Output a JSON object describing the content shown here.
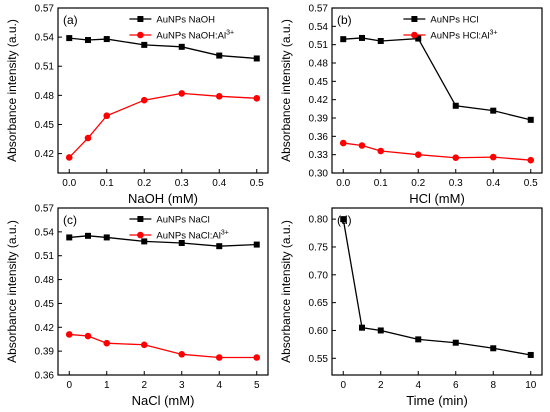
{
  "chart_data": [
    {
      "type": "line",
      "panel_label": "(a)",
      "xlabel": "NaOH (mM)",
      "ylabel": "Absorbance intensity (a.u.)",
      "xlim": [
        -0.03,
        0.53
      ],
      "ylim": [
        0.4,
        0.57
      ],
      "xticks": [
        0.0,
        0.1,
        0.2,
        0.3,
        0.4,
        0.5
      ],
      "xtick_labels": [
        "0.0",
        "0.1",
        "0.2",
        "0.3",
        "0.4",
        "0.5"
      ],
      "yticks": [
        0.42,
        0.45,
        0.48,
        0.51,
        0.54,
        0.57
      ],
      "ytick_labels": [
        "0.42",
        "0.45",
        "0.48",
        "0.51",
        "0.54",
        "0.57"
      ],
      "legend": "top-right",
      "grid": false,
      "series": [
        {
          "name": "AuNPs NaOH",
          "color": "#000000",
          "marker": "square",
          "x": [
            0.0,
            0.05,
            0.1,
            0.2,
            0.3,
            0.4,
            0.5
          ],
          "y": [
            0.539,
            0.537,
            0.538,
            0.532,
            0.53,
            0.521,
            0.518
          ]
        },
        {
          "name": "AuNPs NaOH:Al",
          "name_sup": "3+",
          "color": "#ff0000",
          "marker": "circle",
          "x": [
            0.0,
            0.05,
            0.1,
            0.2,
            0.3,
            0.4,
            0.5
          ],
          "y": [
            0.416,
            0.436,
            0.459,
            0.475,
            0.482,
            0.479,
            0.477
          ]
        }
      ]
    },
    {
      "type": "line",
      "panel_label": "(b)",
      "xlabel": "HCl (mM)",
      "ylabel": "Absorbance intensity (a.u.)",
      "xlim": [
        -0.03,
        0.53
      ],
      "ylim": [
        0.3,
        0.57
      ],
      "xticks": [
        0.0,
        0.1,
        0.2,
        0.3,
        0.4,
        0.5
      ],
      "xtick_labels": [
        "0.0",
        "0.1",
        "0.2",
        "0.3",
        "0.4",
        "0.5"
      ],
      "yticks": [
        0.3,
        0.33,
        0.36,
        0.39,
        0.42,
        0.45,
        0.48,
        0.51,
        0.54,
        0.57
      ],
      "ytick_labels": [
        "0.30",
        "0.33",
        "0.36",
        "0.39",
        "0.42",
        "0.45",
        "0.48",
        "0.51",
        "0.54",
        "0.57"
      ],
      "legend": "top-right",
      "grid": false,
      "series": [
        {
          "name": "AuNPs HCl",
          "color": "#000000",
          "marker": "square",
          "x": [
            0.0,
            0.05,
            0.1,
            0.2,
            0.3,
            0.4,
            0.5
          ],
          "y": [
            0.519,
            0.521,
            0.516,
            0.52,
            0.41,
            0.402,
            0.387
          ]
        },
        {
          "name": "AuNPs HCl:Al",
          "name_sup": "3+",
          "color": "#ff0000",
          "marker": "circle",
          "x": [
            0.0,
            0.05,
            0.1,
            0.2,
            0.3,
            0.4,
            0.5
          ],
          "y": [
            0.349,
            0.345,
            0.336,
            0.33,
            0.325,
            0.326,
            0.321
          ]
        }
      ]
    },
    {
      "type": "line",
      "panel_label": "(c)",
      "xlabel": "NaCl (mM)",
      "ylabel": "Absorbance intensity (a.u.)",
      "xlim": [
        -0.3,
        5.3
      ],
      "ylim": [
        0.36,
        0.57
      ],
      "xticks": [
        0,
        1,
        2,
        3,
        4,
        5
      ],
      "xtick_labels": [
        "0",
        "1",
        "2",
        "3",
        "4",
        "5"
      ],
      "yticks": [
        0.36,
        0.39,
        0.42,
        0.45,
        0.48,
        0.51,
        0.54,
        0.57
      ],
      "ytick_labels": [
        "0.36",
        "0.39",
        "0.42",
        "0.45",
        "0.48",
        "0.51",
        "0.54",
        "0.57"
      ],
      "legend": "top-right",
      "grid": false,
      "series": [
        {
          "name": "AuNPs NaCl",
          "color": "#000000",
          "marker": "square",
          "x": [
            0,
            0.5,
            1,
            2,
            3,
            4,
            5
          ],
          "y": [
            0.533,
            0.535,
            0.533,
            0.528,
            0.526,
            0.522,
            0.524
          ]
        },
        {
          "name": "AuNPs NaCl:Al",
          "name_sup": "3+",
          "color": "#ff0000",
          "marker": "circle",
          "x": [
            0,
            0.5,
            1,
            2,
            3,
            4,
            5
          ],
          "y": [
            0.411,
            0.409,
            0.4,
            0.398,
            0.386,
            0.382,
            0.382
          ]
        }
      ]
    },
    {
      "type": "line",
      "panel_label": "(d)",
      "xlabel": "Time (min)",
      "ylabel": "Absorbance intensity (a.u.)",
      "xlim": [
        -0.6,
        10.6
      ],
      "ylim": [
        0.52,
        0.82
      ],
      "xticks": [
        0,
        2,
        4,
        6,
        8,
        10
      ],
      "xtick_labels": [
        "0",
        "2",
        "4",
        "6",
        "8",
        "10"
      ],
      "yticks": [
        0.55,
        0.6,
        0.65,
        0.7,
        0.75,
        0.8
      ],
      "ytick_labels": [
        "0.55",
        "0.60",
        "0.65",
        "0.70",
        "0.75",
        "0.80"
      ],
      "legend": "none",
      "grid": false,
      "series": [
        {
          "color": "#000000",
          "marker": "square",
          "x": [
            0,
            1,
            2,
            4,
            6,
            8,
            10
          ],
          "y": [
            0.8,
            0.605,
            0.6,
            0.584,
            0.578,
            0.568,
            0.556
          ]
        }
      ]
    }
  ]
}
